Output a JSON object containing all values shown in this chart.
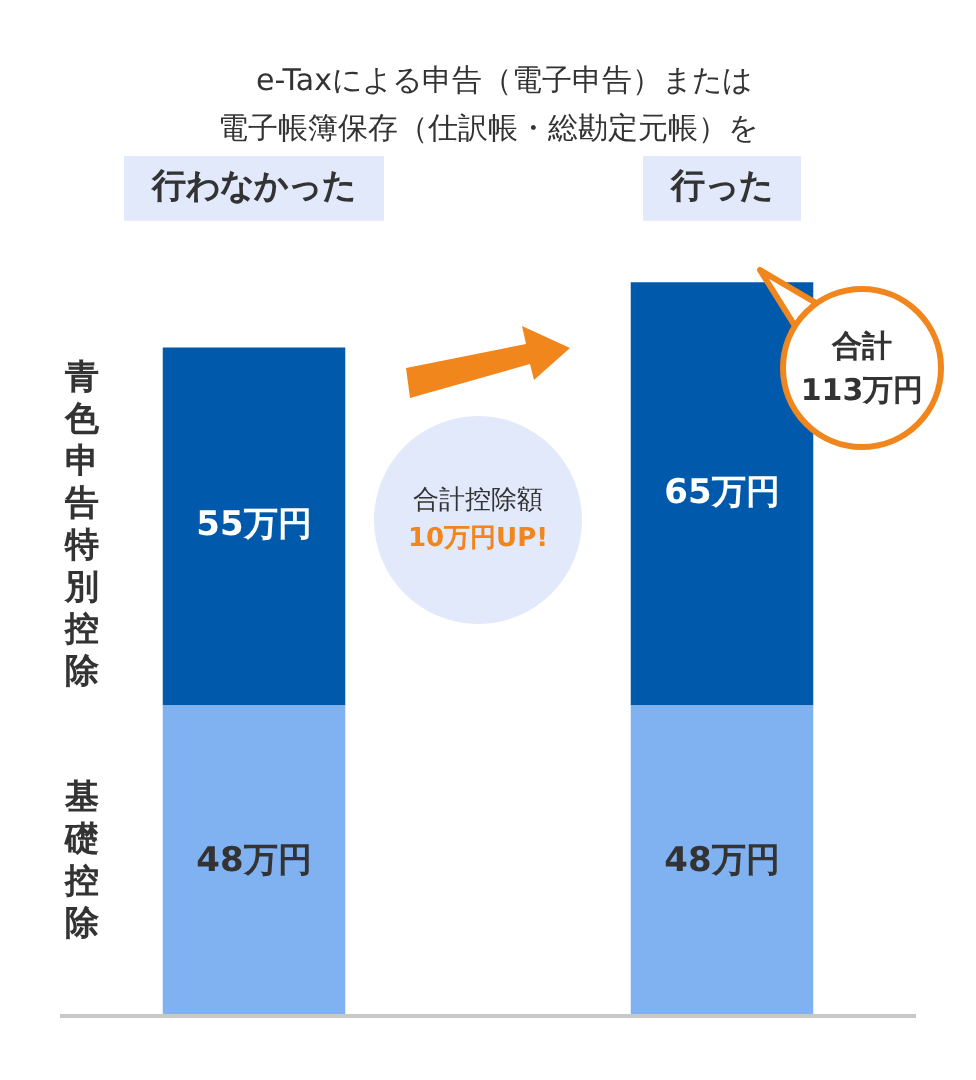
{
  "chart_data": {
    "type": "bar",
    "title": "e-Taxによる申告（電子申告）または電子帳簿保存（仕訳帳・総勘定元帳）を",
    "categories": [
      "行わなかった",
      "行った"
    ],
    "stacked": true,
    "grid": false,
    "legend": false,
    "series": [
      {
        "name": "基礎控除",
        "color": "#80b2f2",
        "values": [
          48,
          48
        ],
        "value_labels": [
          "48万円",
          "48万円"
        ]
      },
      {
        "name": "青色申告特別控除",
        "color": "#0059ab",
        "values": [
          55,
          65
        ],
        "value_labels": [
          "55万円",
          "65万円"
        ]
      }
    ],
    "annotations": [
      "合計控除額\n10万円UP!",
      "合計\n113万円"
    ]
  }
}
